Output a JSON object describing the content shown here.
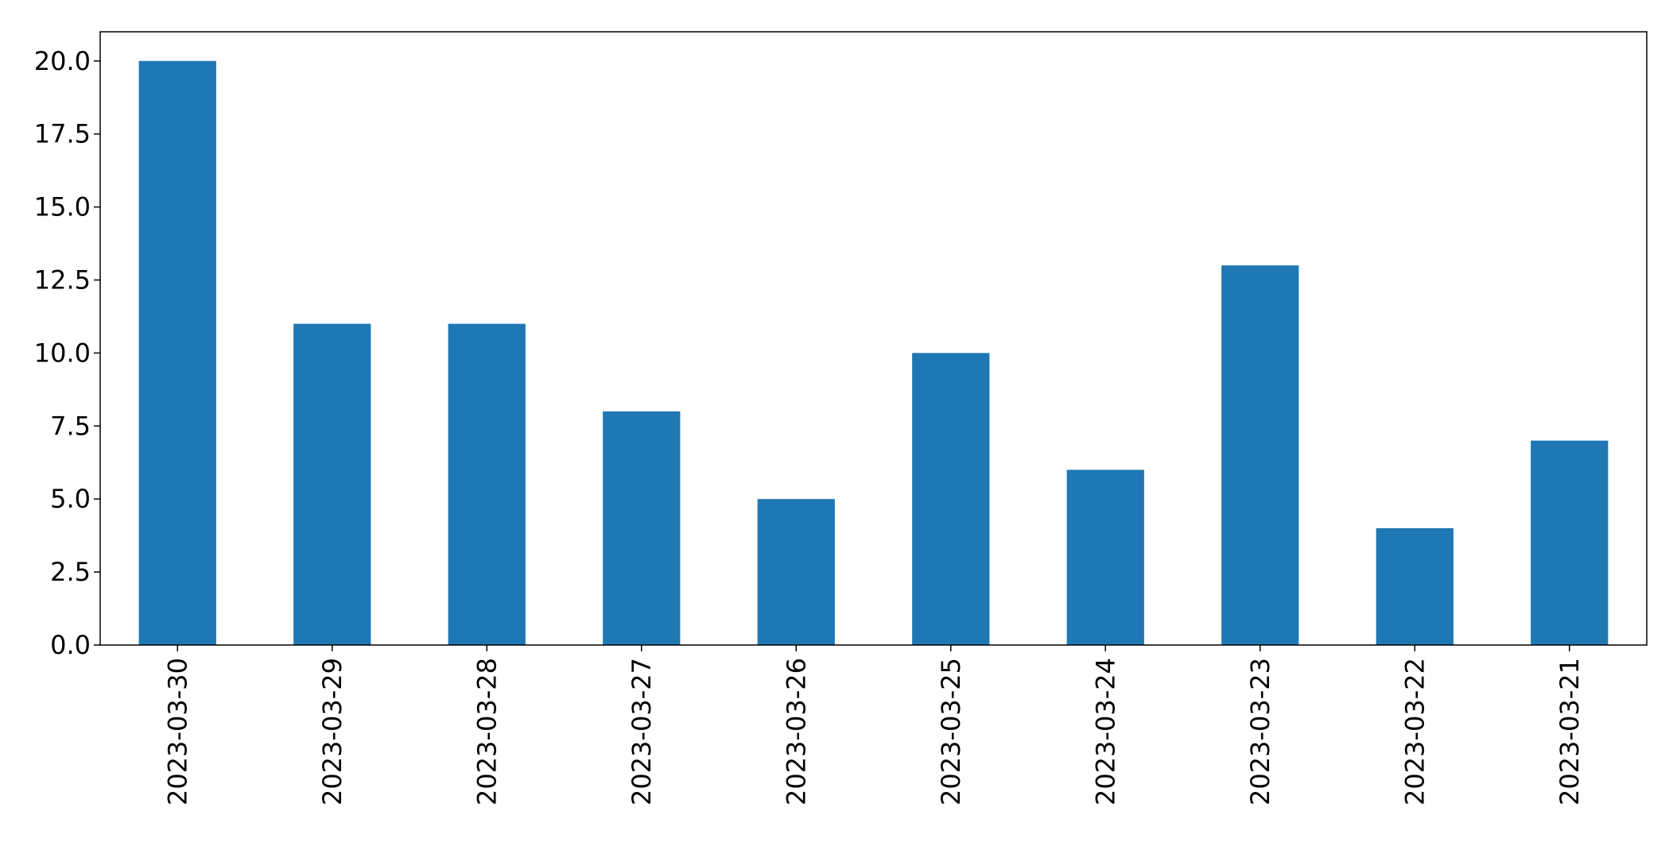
{
  "chart_data": {
    "type": "bar",
    "title": "",
    "xlabel": "",
    "ylabel": "",
    "categories": [
      "2023-03-30",
      "2023-03-29",
      "2023-03-28",
      "2023-03-27",
      "2023-03-26",
      "2023-03-25",
      "2023-03-24",
      "2023-03-23",
      "2023-03-22",
      "2023-03-21"
    ],
    "values": [
      20,
      11,
      11,
      8,
      5,
      10,
      6,
      13,
      4,
      7
    ],
    "ylim": [
      0,
      21
    ],
    "yticks": [
      "0.0",
      "2.5",
      "5.0",
      "7.5",
      "10.0",
      "12.5",
      "15.0",
      "17.5",
      "20.0"
    ],
    "bar_color": "#1f77b4",
    "grid": false,
    "legend": "none"
  }
}
